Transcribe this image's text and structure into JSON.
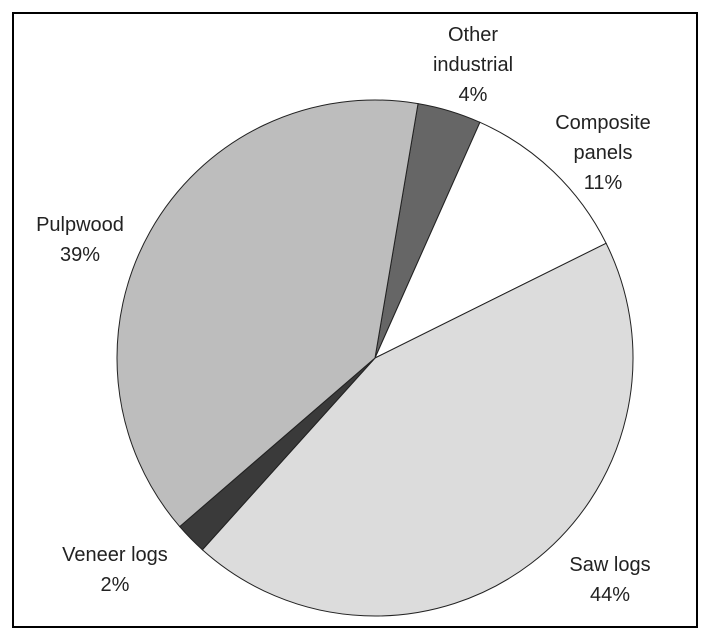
{
  "chart_data": {
    "type": "pie",
    "categories": [
      "Other industrial",
      "Composite panels",
      "Saw logs",
      "Veneer logs",
      "Pulpwood"
    ],
    "values": [
      4,
      11,
      44,
      2,
      39
    ],
    "value_labels": [
      "4%",
      "11%",
      "44%",
      "2%",
      "39%"
    ],
    "colors": [
      "#666666",
      "#ffffff",
      "#dcdcdc",
      "#3a3a3a",
      "#bdbdbd"
    ]
  }
}
